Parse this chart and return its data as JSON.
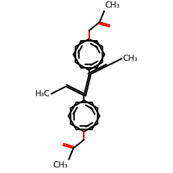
{
  "bg_color": "#ffffff",
  "bond_color": "#000000",
  "red_color": "#ff0000",
  "line_width": 1.6,
  "font_size": 8.5,
  "figsize": [
    2.5,
    2.5
  ],
  "dpi": 100,
  "xlim": [
    0,
    10
  ],
  "ylim": [
    0,
    10
  ]
}
